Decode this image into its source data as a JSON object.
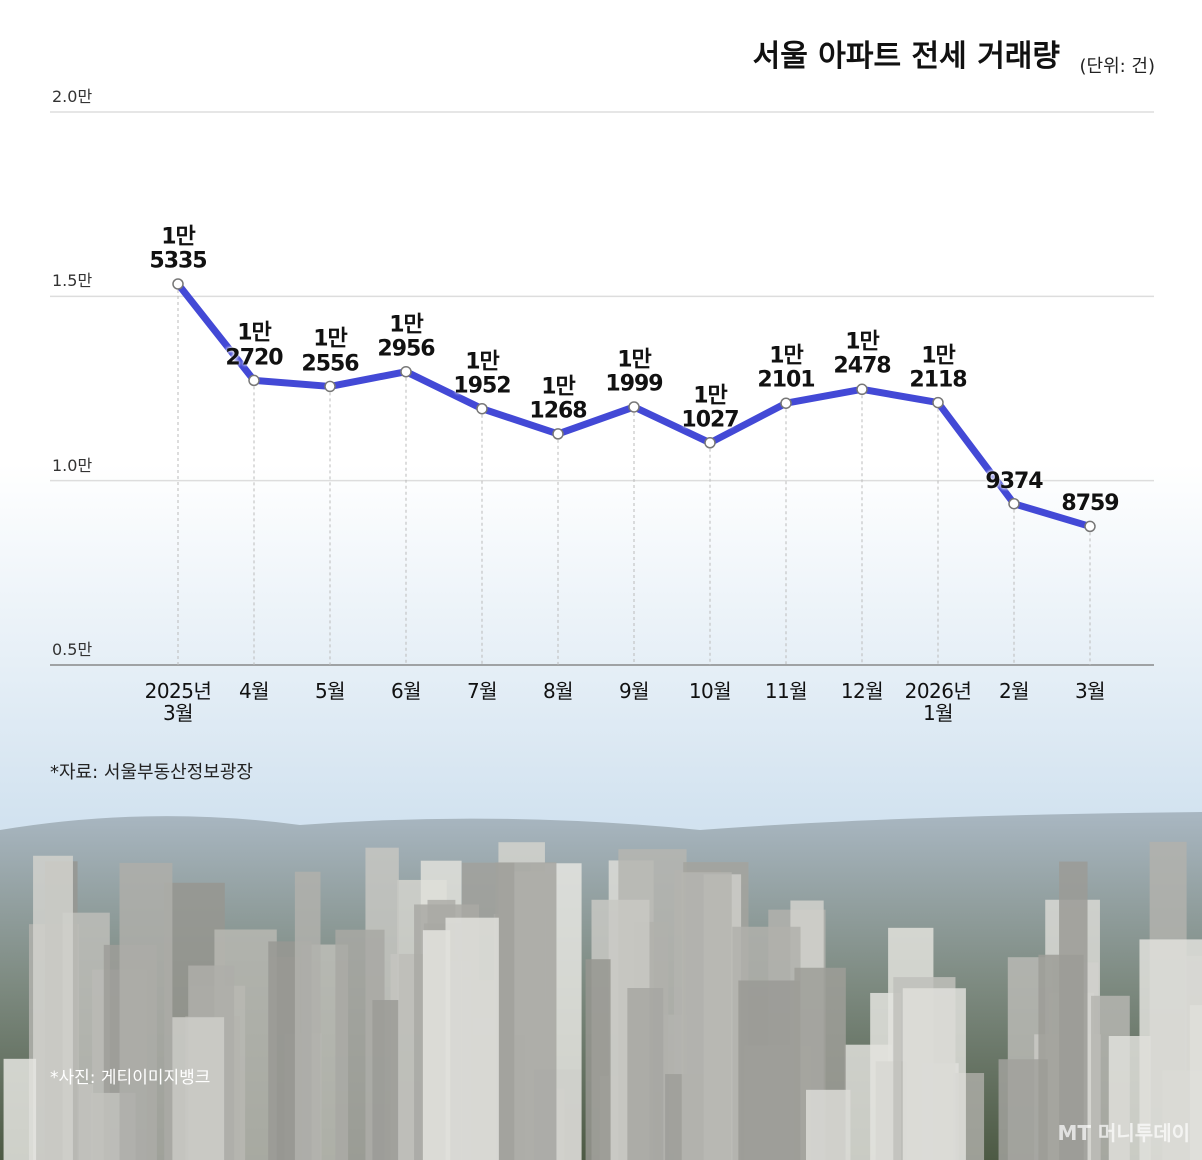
{
  "chart_data": {
    "type": "line",
    "title": "서울 아파트 전세 거래량",
    "subtitle": "(단위: 건)",
    "source": "*자료: 서울부동산정보광장",
    "photo_credit": "*사진: 게티이미지뱅크",
    "watermark": "MT 머니투데이",
    "categories": [
      "2025년\n3월",
      "4월",
      "5월",
      "6월",
      "7월",
      "8월",
      "9월",
      "10월",
      "11월",
      "12월",
      "2026년\n1월",
      "2월",
      "3월"
    ],
    "values": [
      15335,
      12720,
      12556,
      12956,
      11952,
      11268,
      11999,
      11027,
      12101,
      12478,
      12118,
      9374,
      8759
    ],
    "value_labels": [
      "1만\n5335",
      "1만\n2720",
      "1만\n2556",
      "1만\n2956",
      "1만\n1952",
      "1만\n1268",
      "1만\n1999",
      "1만\n1027",
      "1만\n2101",
      "1만\n2478",
      "1만\n2118",
      "9374",
      "8759"
    ],
    "color": "#4349d6",
    "ylim": [
      5000,
      20000
    ],
    "yticks": [
      {
        "value": 5000,
        "label": "0.5만"
      },
      {
        "value": 10000,
        "label": "1.0만"
      },
      {
        "value": 15000,
        "label": "1.5만"
      },
      {
        "value": 20000,
        "label": "2.0만"
      }
    ],
    "grid": true
  }
}
